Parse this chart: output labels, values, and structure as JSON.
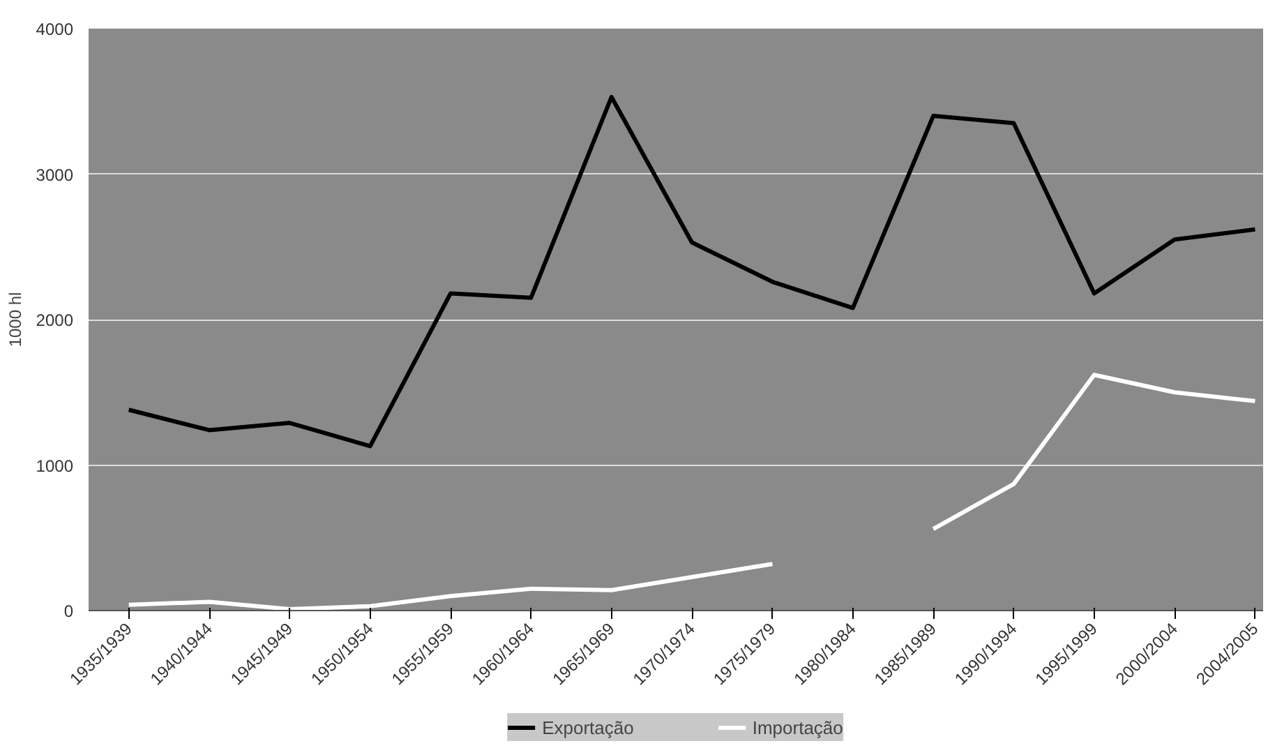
{
  "chart_data": {
    "type": "line",
    "ylabel": "1000 hl",
    "categories": [
      "1935/1939",
      "1940/1944",
      "1945/1949",
      "1950/1954",
      "1955/1959",
      "1960/1964",
      "1965/1969",
      "1970/1974",
      "1975/1979",
      "1980/1984",
      "1985/1989",
      "1990/1994",
      "1995/1999",
      "2000/2004",
      "2004/2005"
    ],
    "series": [
      {
        "name": "Exportação",
        "color": "#000000",
        "values": [
          1380,
          1240,
          1290,
          1130,
          2180,
          2150,
          3530,
          2530,
          2260,
          2080,
          3400,
          3350,
          2180,
          2550,
          2620
        ]
      },
      {
        "name": "Importação",
        "color": "#ffffff",
        "values": [
          40,
          60,
          10,
          30,
          100,
          150,
          140,
          230,
          320,
          null,
          560,
          870,
          1620,
          1500,
          1440
        ]
      }
    ],
    "ylim": [
      0,
      4000
    ],
    "yticks": [
      0,
      1000,
      2000,
      3000,
      4000
    ],
    "grid": "y",
    "legend": "bottom",
    "marker": "none",
    "line_style": "solid"
  }
}
